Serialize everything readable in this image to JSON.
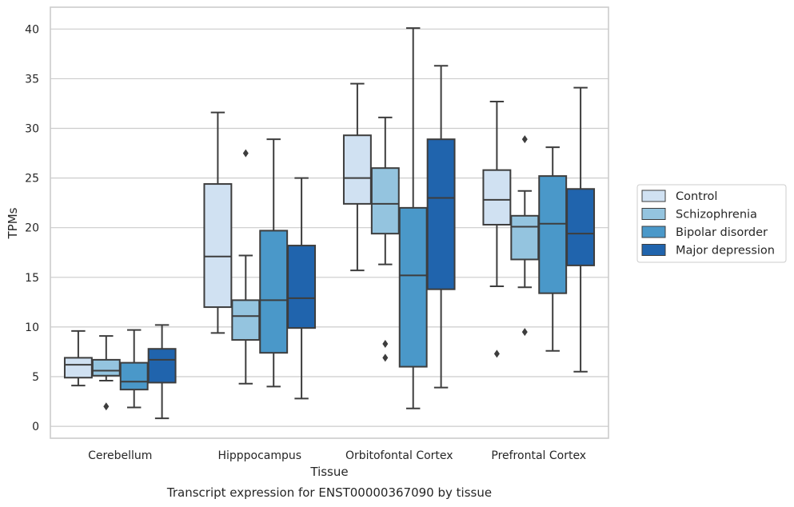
{
  "chart_data": {
    "type": "box",
    "caption": "Transcript expression for ENST00000367090 by tissue",
    "xlabel": "Tissue",
    "ylabel": "TPMs",
    "ylim": [
      -1.2,
      42.2
    ],
    "yticks": [
      0,
      5,
      10,
      15,
      20,
      25,
      30,
      35,
      40
    ],
    "grid": "horizontal",
    "legend_position": "right-outside",
    "categories": [
      "Cerebellum",
      "Hipppocampus",
      "Orbitofontal Cortex",
      "Prefrontal Cortex"
    ],
    "series": [
      {
        "name": "Control",
        "color": "#d0e1f2",
        "boxes": [
          {
            "whisker_low": 4.1,
            "q1": 4.9,
            "median": 6.2,
            "q3": 6.9,
            "whisker_high": 9.6,
            "outliers": []
          },
          {
            "whisker_low": 9.4,
            "q1": 12.0,
            "median": 17.1,
            "q3": 24.4,
            "whisker_high": 31.6,
            "outliers": []
          },
          {
            "whisker_low": 15.7,
            "q1": 22.4,
            "median": 25.0,
            "q3": 29.3,
            "whisker_high": 34.5,
            "outliers": []
          },
          {
            "whisker_low": 14.1,
            "q1": 20.3,
            "median": 22.8,
            "q3": 25.8,
            "whisker_high": 32.7,
            "outliers": [
              7.3
            ]
          }
        ]
      },
      {
        "name": "Schizophrenia",
        "color": "#94c4df",
        "boxes": [
          {
            "whisker_low": 4.6,
            "q1": 5.1,
            "median": 5.6,
            "q3": 6.7,
            "whisker_high": 9.1,
            "outliers": [
              2.0
            ]
          },
          {
            "whisker_low": 4.3,
            "q1": 8.7,
            "median": 11.1,
            "q3": 12.7,
            "whisker_high": 17.2,
            "outliers": [
              27.5
            ]
          },
          {
            "whisker_low": 16.3,
            "q1": 19.4,
            "median": 22.4,
            "q3": 26.0,
            "whisker_high": 31.1,
            "outliers": [
              8.3,
              6.9
            ]
          },
          {
            "whisker_low": 14.0,
            "q1": 16.8,
            "median": 20.1,
            "q3": 21.2,
            "whisker_high": 23.7,
            "outliers": [
              28.9,
              9.5
            ]
          }
        ]
      },
      {
        "name": "Bipolar disorder",
        "color": "#4a98c9",
        "boxes": [
          {
            "whisker_low": 1.9,
            "q1": 3.7,
            "median": 4.5,
            "q3": 6.4,
            "whisker_high": 9.7,
            "outliers": []
          },
          {
            "whisker_low": 4.0,
            "q1": 7.4,
            "median": 12.7,
            "q3": 19.7,
            "whisker_high": 28.9,
            "outliers": []
          },
          {
            "whisker_low": 1.8,
            "q1": 6.0,
            "median": 15.2,
            "q3": 22.0,
            "whisker_high": 40.1,
            "outliers": []
          },
          {
            "whisker_low": 7.6,
            "q1": 13.4,
            "median": 20.4,
            "q3": 25.2,
            "whisker_high": 28.1,
            "outliers": []
          }
        ]
      },
      {
        "name": "Major depression",
        "color": "#2064ad",
        "boxes": [
          {
            "whisker_low": 0.8,
            "q1": 4.4,
            "median": 6.7,
            "q3": 7.8,
            "whisker_high": 10.2,
            "outliers": []
          },
          {
            "whisker_low": 2.8,
            "q1": 9.9,
            "median": 12.9,
            "q3": 18.2,
            "whisker_high": 25.0,
            "outliers": []
          },
          {
            "whisker_low": 3.9,
            "q1": 13.8,
            "median": 23.0,
            "q3": 28.9,
            "whisker_high": 36.3,
            "outliers": []
          },
          {
            "whisker_low": 5.5,
            "q1": 16.2,
            "median": 19.4,
            "q3": 23.9,
            "whisker_high": 34.1,
            "outliers": []
          }
        ]
      }
    ]
  }
}
